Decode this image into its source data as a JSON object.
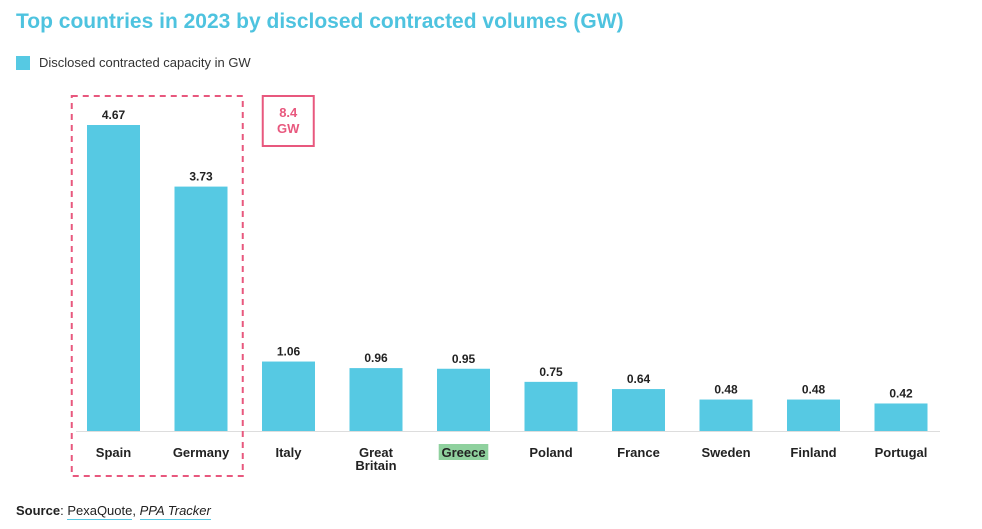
{
  "chart_data": {
    "type": "bar",
    "title": "Top countries in 2023 by disclosed contracted volumes (GW)",
    "series": [
      {
        "name": "Disclosed contracted capacity in GW",
        "color": "#56c9e3",
        "values": [
          4.67,
          3.73,
          1.06,
          0.96,
          0.95,
          0.75,
          0.64,
          0.48,
          0.48,
          0.42
        ]
      }
    ],
    "categories": [
      "Spain",
      "Germany",
      "Italy",
      "Great Britain",
      "Greece",
      "Poland",
      "France",
      "Sweden",
      "Finland",
      "Portugal"
    ],
    "value_labels": [
      "4.67",
      "3.73",
      "1.06",
      "0.96",
      "0.95",
      "0.75",
      "0.64",
      "0.48",
      "0.48",
      "0.42"
    ],
    "highlighted_category": "Greece",
    "highlight_color": "#8fd19e",
    "annotation": {
      "text_line1": "8.4",
      "text_line2": "GW",
      "color": "#e8587e",
      "spans_categories": [
        "Spain",
        "Germany"
      ]
    },
    "ylim": [
      0,
      4.67
    ],
    "grid": false,
    "legend_position": "top-left"
  },
  "source": {
    "label": "Source",
    "separator": ": ",
    "link1": "PexaQuote",
    "comma": ", ",
    "link2": "PPA Tracker"
  }
}
